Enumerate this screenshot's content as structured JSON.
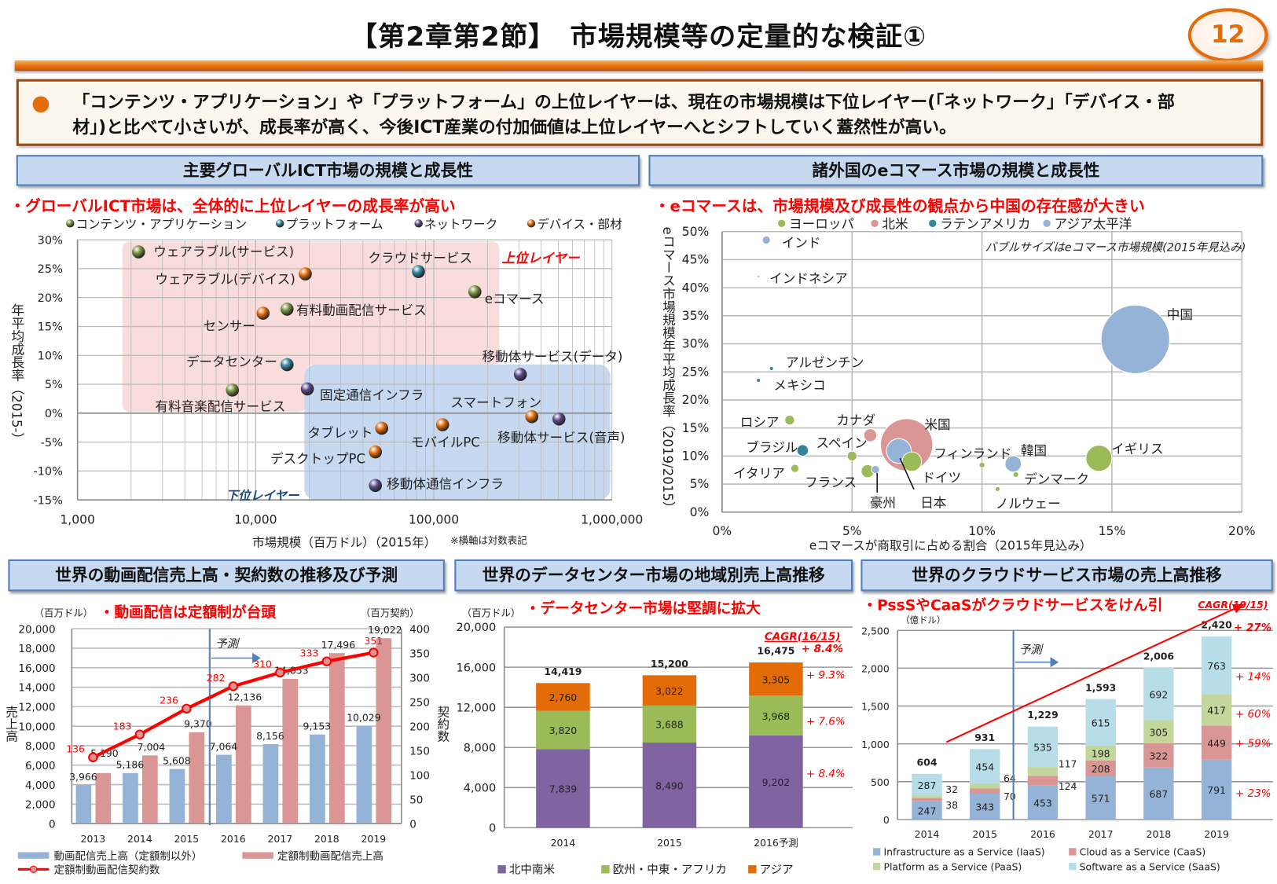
{
  "header": {
    "title": "【第2章第2節】　市場規模等の定量的な検証①",
    "page_number": "12"
  },
  "summary": {
    "bullet_icon": "orange-circle",
    "lines": [
      "「コンテンツ・アプリケーション」や「プラットフォーム」の上位レイヤーは、現在の市場規模は下位レイヤー(「ネットワーク」「デバイス・部",
      "材」)と比べて小さいが、成長率が高く、今後ICT産業の付加価値は上位レイヤーへとシフトしていく蓋然性が高い。"
    ]
  },
  "colors": {
    "accent": "#e46c0a",
    "section_header_bg": "#c6d9f1",
    "section_border": "#4f81bd",
    "highlight_red": "#ff0000"
  },
  "chart_data": [
    {
      "type": "scatter",
      "title": "主要グローバルICT市場の規模と成長性",
      "subtitle": "・グローバルICT市場は、全体的に上位レイヤーの成長率が高い",
      "xlabel": "市場規模（百万ドル）（2015年）",
      "ylabel": "年平均成長率（2015-）",
      "note": "※横軸は対数表記",
      "x_scale": "log",
      "xlim": [
        1000,
        1000000
      ],
      "ylim": [
        -15,
        30
      ],
      "x_ticks": [
        {
          "value": 1000,
          "label": "1,000"
        },
        {
          "value": 10000,
          "label": "10,000"
        },
        {
          "value": 100000,
          "label": "100,000"
        },
        {
          "value": 1000000,
          "label": "1,000,000"
        }
      ],
      "y_ticks": [
        {
          "value": 30,
          "label": "30%"
        },
        {
          "value": 25,
          "label": "25%"
        },
        {
          "value": 20,
          "label": "20%"
        },
        {
          "value": 15,
          "label": "15%"
        },
        {
          "value": 10,
          "label": "10%"
        },
        {
          "value": 5,
          "label": "5%"
        },
        {
          "value": 0,
          "label": "0%"
        },
        {
          "value": -5,
          "label": "-5%"
        },
        {
          "value": -10,
          "label": "-10%"
        },
        {
          "value": -15,
          "label": "-15%"
        }
      ],
      "grid": true,
      "legend_position": "top",
      "categories": [
        {
          "key": "contents",
          "name": "コンテンツ・アプリケーション",
          "color": "#77933c"
        },
        {
          "key": "platform",
          "name": "プラットフォーム",
          "color": "#31859c"
        },
        {
          "key": "network",
          "name": "ネットワーク",
          "color": "#5f4b8b"
        },
        {
          "key": "device",
          "name": "デバイス・部材",
          "color": "#e46c0a"
        }
      ],
      "regions": [
        {
          "label": "上位レイヤー",
          "color": "#f9dcdc"
        },
        {
          "label": "下位レイヤー",
          "color": "#c6d9f1"
        }
      ],
      "points": [
        {
          "label": "ウェアラブル(サービス)",
          "x": 2200,
          "y": 27.9,
          "category": "contents"
        },
        {
          "label": "ウェアラブル(デバイス)",
          "x": 19000,
          "y": 24.1,
          "category": "device"
        },
        {
          "label": "クラウドサービス",
          "x": 82000,
          "y": 24.5,
          "category": "platform"
        },
        {
          "label": "eコマース",
          "x": 170000,
          "y": 21.0,
          "category": "contents"
        },
        {
          "label": "有料動画配信サービス",
          "x": 15000,
          "y": 18.0,
          "category": "contents"
        },
        {
          "label": "センサー",
          "x": 11000,
          "y": 17.3,
          "category": "device"
        },
        {
          "label": "データセンター",
          "x": 15000,
          "y": 8.4,
          "category": "platform"
        },
        {
          "label": "有料音楽配信サービス",
          "x": 7400,
          "y": 4.0,
          "category": "contents"
        },
        {
          "label": "固定通信インフラ",
          "x": 19500,
          "y": 4.2,
          "category": "network"
        },
        {
          "label": "移動体サービス(データ)",
          "x": 306000,
          "y": 6.7,
          "category": "network"
        },
        {
          "label": "スマートフォン",
          "x": 355000,
          "y": -0.6,
          "category": "device"
        },
        {
          "label": "移動体サービス(音声)",
          "x": 504000,
          "y": -1.0,
          "category": "network"
        },
        {
          "label": "タブレット",
          "x": 51000,
          "y": -2.6,
          "category": "device"
        },
        {
          "label": "モバイルPC",
          "x": 112000,
          "y": -2.0,
          "category": "device"
        },
        {
          "label": "デスクトップPC",
          "x": 47000,
          "y": -6.7,
          "category": "device"
        },
        {
          "label": "移動体通信インフラ",
          "x": 47000,
          "y": -12.5,
          "category": "network"
        }
      ]
    },
    {
      "type": "scatter",
      "title": "諸外国のeコマース市場の規模と成長性",
      "subtitle": "・eコマースは、市場規模及び成長性の観点から中国の存在感が大きい",
      "xlabel": "eコマースが商取引に占める割合（2015年見込み）",
      "ylabel": "eコマース市場規模年平均成長率（2019/2015）",
      "note": "バブルサイズはeコマース市場規模(2015年見込み)",
      "xlim": [
        0,
        20
      ],
      "ylim": [
        0,
        50
      ],
      "x_ticks": [
        {
          "value": 0,
          "label": "0%"
        },
        {
          "value": 5,
          "label": "5%"
        },
        {
          "value": 10,
          "label": "10%"
        },
        {
          "value": 15,
          "label": "15%"
        },
        {
          "value": 20,
          "label": "20%"
        }
      ],
      "y_ticks": [
        {
          "value": 50,
          "label": "50%"
        },
        {
          "value": 45,
          "label": "45%"
        },
        {
          "value": 40,
          "label": "40%"
        },
        {
          "value": 35,
          "label": "35%"
        },
        {
          "value": 30,
          "label": "30%"
        },
        {
          "value": 25,
          "label": "25%"
        },
        {
          "value": 20,
          "label": "20%"
        },
        {
          "value": 15,
          "label": "15%"
        },
        {
          "value": 10,
          "label": "10%"
        },
        {
          "value": 5,
          "label": "5%"
        },
        {
          "value": 0,
          "label": "0%"
        }
      ],
      "grid": true,
      "legend_position": "top",
      "categories": [
        {
          "key": "europe",
          "name": "ヨーロッパ",
          "color": "#9bbb59"
        },
        {
          "key": "na",
          "name": "北米",
          "color": "#d99694"
        },
        {
          "key": "latam",
          "name": "ラテンアメリカ",
          "color": "#31859c"
        },
        {
          "key": "apac",
          "name": "アジア太平洋",
          "color": "#95b3d7"
        }
      ],
      "points": [
        {
          "label": "インド",
          "x": 1.7,
          "y": 48.5,
          "relative_size": 1.4,
          "category": "apac"
        },
        {
          "label": "インドネシア",
          "x": 1.4,
          "y": 42.0,
          "relative_size": 0.13,
          "category": "apac"
        },
        {
          "label": "アルゼンチン",
          "x": 1.9,
          "y": 25.6,
          "relative_size": 0.35,
          "category": "latam"
        },
        {
          "label": "メキシコ",
          "x": 1.4,
          "y": 23.5,
          "relative_size": 0.35,
          "category": "latam"
        },
        {
          "label": "中国",
          "x": 15.9,
          "y": 30.8,
          "relative_size": 100,
          "category": "apac"
        },
        {
          "label": "ロシア",
          "x": 2.6,
          "y": 16.4,
          "relative_size": 2,
          "category": "europe"
        },
        {
          "label": "ブラジル",
          "x": 3.1,
          "y": 11.0,
          "relative_size": 2.8,
          "category": "latam"
        },
        {
          "label": "イタリア",
          "x": 2.8,
          "y": 7.8,
          "relative_size": 1.4,
          "category": "europe"
        },
        {
          "label": "カナダ",
          "x": 5.7,
          "y": 13.7,
          "relative_size": 3.6,
          "category": "na"
        },
        {
          "label": "米国",
          "x": 7.1,
          "y": 12.0,
          "relative_size": 58,
          "category": "na"
        },
        {
          "label": "スペイン",
          "x": 5.0,
          "y": 10.0,
          "relative_size": 2,
          "category": "europe"
        },
        {
          "label": "フランス",
          "x": 5.6,
          "y": 7.3,
          "relative_size": 3.6,
          "category": "europe"
        },
        {
          "label": "ドイツ",
          "x": 7.3,
          "y": 9.0,
          "relative_size": 8,
          "category": "europe"
        },
        {
          "label": "日本",
          "x": 6.8,
          "y": 10.9,
          "relative_size": 13,
          "category": "apac"
        },
        {
          "label": "豪州",
          "x": 5.9,
          "y": 7.6,
          "relative_size": 1.4,
          "category": "apac"
        },
        {
          "label": "フィンランド",
          "x": 10.0,
          "y": 8.4,
          "relative_size": 0.7,
          "category": "europe"
        },
        {
          "label": "韓国",
          "x": 11.2,
          "y": 8.6,
          "relative_size": 5.7,
          "category": "apac"
        },
        {
          "label": "デンマーク",
          "x": 11.3,
          "y": 6.7,
          "relative_size": 0.7,
          "category": "europe"
        },
        {
          "label": "ノルウェー",
          "x": 10.6,
          "y": 4.1,
          "relative_size": 0.5,
          "category": "europe"
        },
        {
          "label": "イギリス",
          "x": 14.5,
          "y": 9.6,
          "relative_size": 14.5,
          "category": "europe"
        }
      ]
    },
    {
      "type": "bar",
      "title": "世界の動画配信売上高・契約数の推移及び予測",
      "subtitle": "・動画配信は定額制が台頭",
      "ylabel": "売上高",
      "ylabel_right": "契約数",
      "unit_left": "（百万ドル）",
      "unit_right": "（百万契約）",
      "forecast_label": "予測",
      "forecast_from": "2016",
      "categories": [
        "2013",
        "2014",
        "2015",
        "2016",
        "2017",
        "2018",
        "2019"
      ],
      "ylim": [
        0,
        20000
      ],
      "ylim_right": [
        0,
        400
      ],
      "y_ticks": [
        "0",
        "2,000",
        "4,000",
        "6,000",
        "8,000",
        "10,000",
        "12,000",
        "14,000",
        "16,000",
        "18,000",
        "20,000"
      ],
      "y_ticks_right": [
        "0",
        "50",
        "100",
        "150",
        "200",
        "250",
        "300",
        "350",
        "400"
      ],
      "grid": true,
      "legend_position": "bottom",
      "series": [
        {
          "name": "動画配信売上高（定額制以外）",
          "type": "bar",
          "axis": "left",
          "color": "#95b3d7",
          "values": [
            3966,
            5186,
            5608,
            7064,
            8156,
            9153,
            10029
          ],
          "labels": [
            "3,966",
            "5,186",
            "5,608",
            "7,064",
            "8,156",
            "9,153",
            "10,029"
          ]
        },
        {
          "name": "定額制動画配信売上高",
          "type": "bar",
          "axis": "left",
          "color": "#d99694",
          "values": [
            5190,
            7004,
            9370,
            12136,
            14853,
            17496,
            19022
          ],
          "labels": [
            "5,190",
            "7,004",
            "9,370",
            "12,136",
            "14,853",
            "17,496",
            "19,022"
          ]
        },
        {
          "name": "定額制動画配信契約数",
          "type": "line",
          "axis": "right",
          "color": "#ff0000",
          "values": [
            136,
            183,
            236,
            282,
            310,
            333,
            351
          ],
          "labels": [
            "136",
            "183",
            "236",
            "282",
            "310",
            "333",
            "351"
          ]
        }
      ]
    },
    {
      "type": "bar",
      "stacked": true,
      "title": "世界のデータセンター市場の地域別売上高推移",
      "subtitle": "・データセンター市場は堅調に拡大",
      "unit_left": "（百万ドル）",
      "categories": [
        "2014",
        "2015",
        "2016予測"
      ],
      "ylim": [
        0,
        20000
      ],
      "y_ticks": [
        "0",
        "4,000",
        "8,000",
        "12,000",
        "16,000",
        "20,000"
      ],
      "grid": true,
      "legend_position": "bottom",
      "totals": [
        "14,419",
        "15,200",
        "16,475"
      ],
      "cagr_title": "CAGR(16/15)",
      "cagr_total": "+ 8.4%",
      "series": [
        {
          "name": "北中南米",
          "color": "#8064a2",
          "values": [
            7839,
            8490,
            9202
          ],
          "labels": [
            "7,839",
            "8,490",
            "9,202"
          ],
          "cagr": "+ 8.4%"
        },
        {
          "name": "欧州・中東・アフリカ",
          "color": "#9bbb59",
          "values": [
            3820,
            3688,
            3968
          ],
          "labels": [
            "3,820",
            "3,688",
            "3,968"
          ],
          "cagr": "+ 7.6%"
        },
        {
          "name": "アジア",
          "color": "#e36c09",
          "values": [
            2760,
            3022,
            3305
          ],
          "labels": [
            "2,760",
            "3,022",
            "3,305"
          ],
          "cagr": "+ 9.3%"
        }
      ]
    },
    {
      "type": "bar",
      "stacked": true,
      "title": "世界のクラウドサービス市場の売上高推移",
      "subtitle": "・PssSやCaaSがクラウドサービスをけん引",
      "unit_left": "（億ドル）",
      "forecast_label": "予測",
      "forecast_from": "2016",
      "categories": [
        "2014",
        "2015",
        "2016",
        "2017",
        "2018",
        "2019"
      ],
      "ylim": [
        0,
        2500
      ],
      "y_ticks": [
        "0",
        "500",
        "1,000",
        "1,500",
        "2,000",
        "2,500"
      ],
      "grid": true,
      "legend_position": "bottom",
      "totals": [
        "604",
        "931",
        "1,229",
        "1,593",
        "2,006",
        "2,420"
      ],
      "cagr_title": "CAGR(19/15)",
      "cagr_total": "+ 27%",
      "series": [
        {
          "name": "Infrastructure as a Service (IaaS)",
          "color": "#95b3d7",
          "values": [
            247,
            343,
            453,
            571,
            687,
            791
          ],
          "labels": [
            "247",
            "343",
            "453",
            "571",
            "687",
            "791"
          ],
          "cagr": "+ 23%"
        },
        {
          "name": "Cloud as a Service (CaaS)",
          "color": "#d99694",
          "values": [
            38,
            70,
            124,
            208,
            322,
            449
          ],
          "labels": [
            "38",
            "70",
            "124",
            "208",
            "322",
            "449"
          ],
          "cagr": "+ 59%"
        },
        {
          "name": "Platform as a Service (PaaS)",
          "color": "#c3d69b",
          "values": [
            32,
            64,
            117,
            198,
            305,
            417
          ],
          "labels": [
            "32",
            "64",
            "117",
            "198",
            "305",
            "417"
          ],
          "cagr": "+ 60%"
        },
        {
          "name": "Software as a Service (SaaS)",
          "color": "#b7dee8",
          "values": [
            287,
            454,
            535,
            615,
            692,
            763
          ],
          "labels": [
            "287",
            "454",
            "535",
            "615",
            "692",
            "763"
          ],
          "cagr": "+ 14%"
        }
      ]
    }
  ]
}
